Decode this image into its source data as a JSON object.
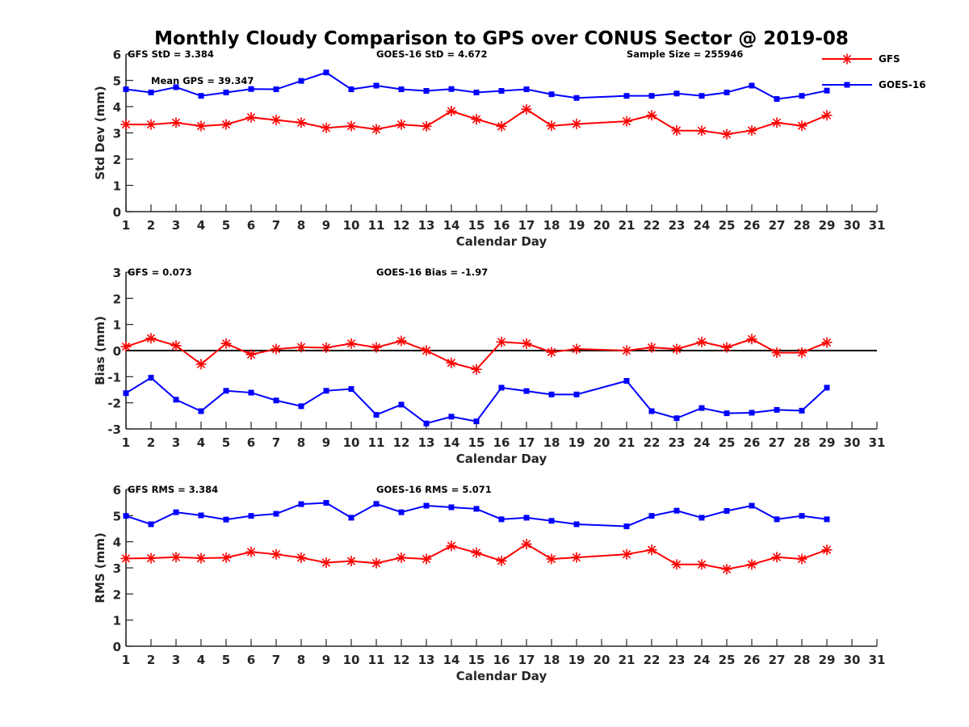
{
  "title": "Monthly Cloudy Comparison to GPS over CONUS Sector @ 2019-08",
  "legend": {
    "placement": "top-right",
    "entries": [
      {
        "name": "GFS",
        "color": "#ff0000",
        "marker": "asterisk"
      },
      {
        "name": "GOES-16",
        "color": "#0000ff",
        "marker": "square"
      }
    ]
  },
  "chart_data": [
    {
      "type": "line",
      "id": "stddev",
      "title": "",
      "xlabel": "Calendar Day",
      "ylabel": "Std Dev (mm)",
      "xlim": [
        1,
        31
      ],
      "ylim": [
        0,
        6
      ],
      "xticks": [
        1,
        2,
        3,
        4,
        5,
        6,
        7,
        8,
        9,
        10,
        11,
        12,
        13,
        14,
        15,
        16,
        17,
        18,
        19,
        20,
        21,
        22,
        23,
        24,
        25,
        26,
        27,
        28,
        29,
        30,
        31
      ],
      "yticks": [
        0,
        1,
        2,
        3,
        4,
        5,
        6
      ],
      "zero_line": false,
      "annotations": [
        {
          "text": "GFS StD = 3.384",
          "pos": "top-left"
        },
        {
          "text": "GOES-16 StD = 4.672",
          "pos": "top-center"
        },
        {
          "text": "Sample Size = 255946",
          "pos": "top-right"
        },
        {
          "text": "Mean GPS = 39.347",
          "pos": "upper-left"
        }
      ],
      "x": [
        1,
        2,
        3,
        4,
        5,
        6,
        7,
        8,
        9,
        10,
        11,
        12,
        13,
        14,
        15,
        16,
        17,
        18,
        19,
        21,
        22,
        23,
        24,
        25,
        26,
        27,
        28,
        29
      ],
      "series": [
        {
          "name": "GFS",
          "values": [
            3.32,
            3.32,
            3.39,
            3.26,
            3.32,
            3.59,
            3.49,
            3.39,
            3.19,
            3.26,
            3.14,
            3.32,
            3.25,
            3.83,
            3.52,
            3.25,
            3.9,
            3.27,
            3.34,
            3.44,
            3.67,
            3.09,
            3.08,
            2.95,
            3.09,
            3.39,
            3.27,
            3.67
          ]
        },
        {
          "name": "GOES-16",
          "values": [
            4.66,
            4.54,
            4.74,
            4.41,
            4.54,
            4.67,
            4.66,
            4.98,
            5.3,
            4.66,
            4.8,
            4.66,
            4.6,
            4.67,
            4.54,
            4.6,
            4.66,
            4.47,
            4.33,
            4.41,
            4.41,
            4.5,
            4.41,
            4.54,
            4.8,
            4.29,
            4.41,
            4.61
          ]
        }
      ]
    },
    {
      "type": "line",
      "id": "bias",
      "title": "",
      "xlabel": "Calendar Day",
      "ylabel": "Bias (mm)",
      "xlim": [
        1,
        31
      ],
      "ylim": [
        -3,
        3
      ],
      "xticks": [
        1,
        2,
        3,
        4,
        5,
        6,
        7,
        8,
        9,
        10,
        11,
        12,
        13,
        14,
        15,
        16,
        17,
        18,
        19,
        20,
        21,
        22,
        23,
        24,
        25,
        26,
        27,
        28,
        29,
        30,
        31
      ],
      "yticks": [
        -3,
        -2,
        -1,
        0,
        1,
        2,
        3
      ],
      "zero_line": true,
      "annotations": [
        {
          "text": "GFS = 0.073",
          "pos": "top-left"
        },
        {
          "text": "GOES-16 Bias = -1.97",
          "pos": "top-center"
        }
      ],
      "x": [
        1,
        2,
        3,
        4,
        5,
        6,
        7,
        8,
        9,
        10,
        11,
        12,
        13,
        14,
        15,
        16,
        17,
        18,
        19,
        21,
        22,
        23,
        24,
        25,
        26,
        27,
        28,
        29
      ],
      "series": [
        {
          "name": "GFS",
          "values": [
            0.15,
            0.47,
            0.19,
            -0.52,
            0.27,
            -0.15,
            0.06,
            0.13,
            0.11,
            0.27,
            0.12,
            0.37,
            0.0,
            -0.47,
            -0.72,
            0.33,
            0.27,
            -0.06,
            0.06,
            0.0,
            0.12,
            0.06,
            0.33,
            0.12,
            0.44,
            -0.08,
            -0.08,
            0.31
          ]
        },
        {
          "name": "GOES-16",
          "values": [
            -1.63,
            -1.04,
            -1.88,
            -2.32,
            -1.54,
            -1.61,
            -1.91,
            -2.13,
            -1.54,
            -1.47,
            -2.46,
            -2.07,
            -2.79,
            -2.53,
            -2.71,
            -1.42,
            -1.55,
            -1.68,
            -1.68,
            -1.16,
            -2.32,
            -2.59,
            -2.2,
            -2.4,
            -2.38,
            -2.27,
            -2.3,
            -1.42
          ]
        }
      ]
    },
    {
      "type": "line",
      "id": "rms",
      "title": "",
      "xlabel": "Calendar Day",
      "ylabel": "RMS (mm)",
      "xlim": [
        1,
        31
      ],
      "ylim": [
        0,
        6
      ],
      "xticks": [
        1,
        2,
        3,
        4,
        5,
        6,
        7,
        8,
        9,
        10,
        11,
        12,
        13,
        14,
        15,
        16,
        17,
        18,
        19,
        20,
        21,
        22,
        23,
        24,
        25,
        26,
        27,
        28,
        29,
        30,
        31
      ],
      "yticks": [
        0,
        1,
        2,
        3,
        4,
        5,
        6
      ],
      "zero_line": false,
      "annotations": [
        {
          "text": "GFS RMS = 3.384",
          "pos": "top-left"
        },
        {
          "text": "GOES-16 RMS = 5.071",
          "pos": "top-center"
        }
      ],
      "x": [
        1,
        2,
        3,
        4,
        5,
        6,
        7,
        8,
        9,
        10,
        11,
        12,
        13,
        14,
        15,
        16,
        17,
        18,
        19,
        21,
        22,
        23,
        24,
        25,
        26,
        27,
        28,
        29
      ],
      "series": [
        {
          "name": "GFS",
          "values": [
            3.36,
            3.37,
            3.41,
            3.37,
            3.39,
            3.61,
            3.52,
            3.39,
            3.2,
            3.26,
            3.18,
            3.39,
            3.34,
            3.84,
            3.58,
            3.27,
            3.91,
            3.34,
            3.4,
            3.52,
            3.69,
            3.13,
            3.13,
            2.95,
            3.13,
            3.41,
            3.34,
            3.69
          ]
        },
        {
          "name": "GOES-16",
          "values": [
            4.99,
            4.67,
            5.13,
            5.01,
            4.85,
            4.99,
            5.07,
            5.44,
            5.49,
            4.92,
            5.45,
            5.13,
            5.38,
            5.32,
            5.26,
            4.86,
            4.92,
            4.8,
            4.67,
            4.59,
            4.99,
            5.19,
            4.92,
            5.18,
            5.38,
            4.86,
            4.99,
            4.86
          ]
        }
      ]
    }
  ]
}
